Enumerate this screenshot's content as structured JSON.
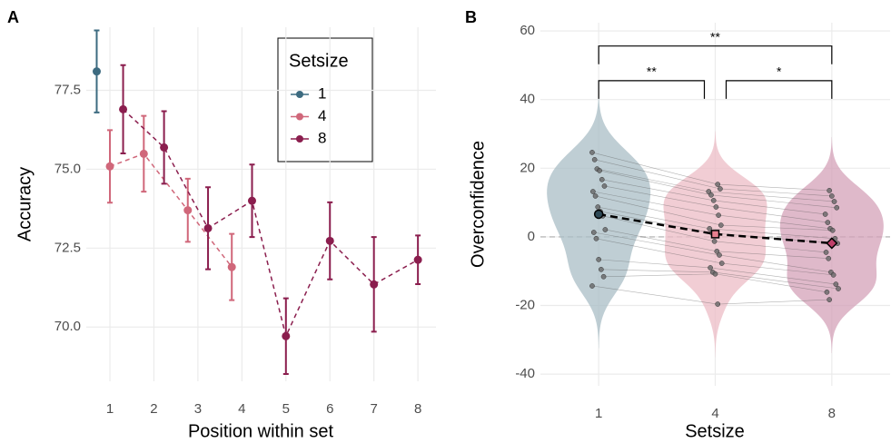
{
  "chart_data": [
    {
      "type": "line",
      "panel_label": "A",
      "xlabel": "Position within set",
      "ylabel": "Accuracy",
      "xlim": [
        0.463,
        8.41
      ],
      "ylim": [
        68.28,
        79.5
      ],
      "xticks": [
        1,
        2,
        3,
        4,
        5,
        6,
        7,
        8
      ],
      "yticks": [
        {
          "value": 70,
          "label": "70.0"
        },
        72.5,
        {
          "value": 75,
          "label": "75.0"
        },
        77.5
      ],
      "grid": true,
      "line_style": "dashed",
      "legend_title": "Setsize",
      "series": [
        {
          "name": "1",
          "color": "#3d6b80",
          "x": [
            1
          ],
          "values": [
            78.1
          ],
          "errors": [
            1.3
          ]
        },
        {
          "name": "4",
          "color": "#d0677a",
          "x": [
            1,
            2,
            3,
            4
          ],
          "values": [
            75.09,
            75.49,
            73.7,
            71.9
          ],
          "errors": [
            1.15,
            1.2,
            1.0,
            1.05
          ]
        },
        {
          "name": "8",
          "color": "#8b1e4e",
          "x": [
            1,
            2,
            3,
            4,
            5,
            6,
            7,
            8
          ],
          "values": [
            76.9,
            75.69,
            73.13,
            74.0,
            69.71,
            72.73,
            71.35,
            72.13
          ],
          "errors": [
            1.4,
            1.15,
            1.3,
            1.15,
            1.2,
            1.22,
            1.5,
            0.77
          ]
        }
      ]
    },
    {
      "type": "violin",
      "panel_label": "B",
      "xlabel": "Setsize",
      "ylabel": "Overconfidence",
      "ylim": [
        -43.4,
        62.4
      ],
      "yticks": [
        -40,
        -20,
        0,
        20,
        40,
        60
      ],
      "grid": true,
      "hline": 0,
      "categories": [
        "1",
        "4",
        "8"
      ],
      "groups": [
        {
          "color": "#a9bec6",
          "mean_color": "#2f4a57",
          "marker": "circle",
          "mean": 6.6,
          "values": [
            24.6,
            22.5,
            19.8,
            19.3,
            16.7,
            14.8,
            13.2,
            11.9,
            8.7,
            7.4,
            6.1,
            2.1,
            1.3,
            -0.5,
            -6.6,
            -9.5,
            -11.6,
            -14.3
          ]
        },
        {
          "color": "#ecbcc5",
          "mean_color": "#e8808f",
          "marker": "square",
          "mean": 0.8,
          "values": [
            15.3,
            14.0,
            13.2,
            12.2,
            10.6,
            8.7,
            6.3,
            3.4,
            2.4,
            1.1,
            -1.3,
            -4.2,
            -5.3,
            -7.7,
            -9.0,
            -10.3,
            -10.8,
            -19.6
          ]
        },
        {
          "color": "#d4a2b8",
          "mean_color": "#c0406a",
          "marker": "diamond",
          "mean": -1.85,
          "values": [
            13.5,
            11.9,
            10.3,
            8.5,
            6.6,
            4.2,
            2.4,
            1.9,
            -0.5,
            -1.9,
            -4.5,
            -6.3,
            -10.3,
            -11.1,
            -13.8,
            -15.1,
            -16.1,
            -18.3
          ]
        }
      ],
      "comparisons": [
        {
          "between": [
            "1",
            "8"
          ],
          "label": "**",
          "y": 55.6
        },
        {
          "between": [
            "1",
            "4"
          ],
          "label": "**",
          "y": 45.5
        },
        {
          "between": [
            "4",
            "8"
          ],
          "label": "*",
          "y": 45.5
        }
      ]
    }
  ]
}
